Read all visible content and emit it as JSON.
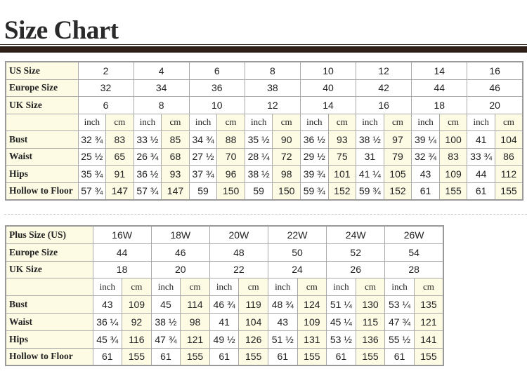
{
  "title": "Size Chart",
  "standard": {
    "header_rows": [
      {
        "label": "US Size",
        "values": [
          "2",
          "4",
          "6",
          "8",
          "10",
          "12",
          "14",
          "16"
        ]
      },
      {
        "label": "Europe Size",
        "values": [
          "32",
          "34",
          "36",
          "38",
          "40",
          "42",
          "44",
          "46"
        ]
      },
      {
        "label": "UK Size",
        "values": [
          "6",
          "8",
          "10",
          "12",
          "14",
          "16",
          "18",
          "20"
        ]
      }
    ],
    "units": [
      "inch",
      "cm"
    ],
    "measure_rows": [
      {
        "label": "Bust",
        "values": [
          "32 ¾",
          "83",
          "33 ½",
          "85",
          "34 ¾",
          "88",
          "35 ½",
          "90",
          "36 ½",
          "93",
          "38 ½",
          "97",
          "39 ¼",
          "100",
          "41",
          "104"
        ]
      },
      {
        "label": "Waist",
        "values": [
          "25 ½",
          "65",
          "26 ¾",
          "68",
          "27 ½",
          "70",
          "28 ¼",
          "72",
          "29 ½",
          "75",
          "31",
          "79",
          "32 ¾",
          "83",
          "33 ¾",
          "86"
        ]
      },
      {
        "label": "Hips",
        "values": [
          "35 ¾",
          "91",
          "36 ½",
          "93",
          "37 ¾",
          "96",
          "38 ½",
          "98",
          "39 ¾",
          "101",
          "41 ¼",
          "105",
          "43",
          "109",
          "44",
          "112"
        ]
      },
      {
        "label": "Hollow to Floor",
        "values": [
          "57 ¾",
          "147",
          "57 ¾",
          "147",
          "59",
          "150",
          "59",
          "150",
          "59 ¾",
          "152",
          "59 ¾",
          "152",
          "61",
          "155",
          "61",
          "155"
        ]
      }
    ]
  },
  "plus": {
    "header_rows": [
      {
        "label": "Plus Size (US)",
        "values": [
          "16W",
          "18W",
          "20W",
          "22W",
          "24W",
          "26W"
        ]
      },
      {
        "label": "Europe Size",
        "values": [
          "44",
          "46",
          "48",
          "50",
          "52",
          "54"
        ]
      },
      {
        "label": "UK Size",
        "values": [
          "18",
          "20",
          "22",
          "24",
          "26",
          "28"
        ]
      }
    ],
    "units": [
      "inch",
      "cm"
    ],
    "measure_rows": [
      {
        "label": "Bust",
        "values": [
          "43",
          "109",
          "45",
          "114",
          "46 ¾",
          "119",
          "48 ¾",
          "124",
          "51 ¼",
          "130",
          "53 ¼",
          "135"
        ]
      },
      {
        "label": "Waist",
        "values": [
          "36 ¼",
          "92",
          "38 ½",
          "98",
          "41",
          "104",
          "43",
          "109",
          "45 ¼",
          "115",
          "47 ¾",
          "121"
        ]
      },
      {
        "label": "Hips",
        "values": [
          "45 ¾",
          "116",
          "47 ¾",
          "121",
          "49 ½",
          "126",
          "51 ½",
          "131",
          "53 ½",
          "136",
          "55 ½",
          "141"
        ]
      },
      {
        "label": "Hollow to Floor",
        "values": [
          "61",
          "155",
          "61",
          "155",
          "61",
          "155",
          "61",
          "155",
          "61",
          "155",
          "61",
          "155"
        ]
      }
    ]
  },
  "colors": {
    "label_bg": "#fdfbe4",
    "rule": "#2e2018",
    "border": "#999999"
  }
}
